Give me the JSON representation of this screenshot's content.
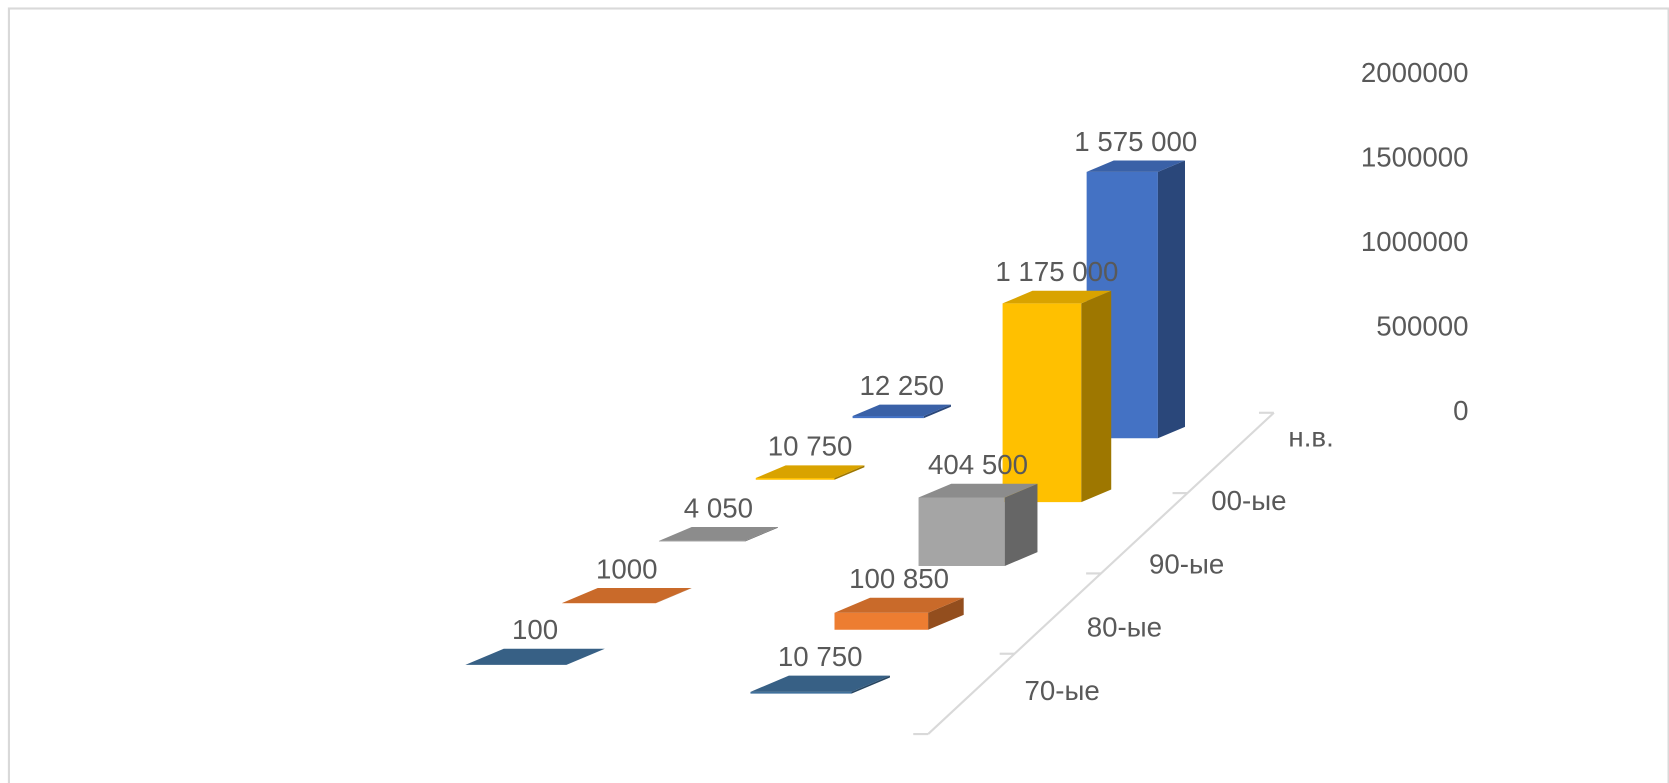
{
  "chart_data": {
    "type": "bar3d",
    "categories": [
      null,
      null
    ],
    "series": [
      {
        "name": "70-ые",
        "color": "#41719c",
        "values": [
          100,
          10750
        ],
        "value_labels": [
          "100",
          "10 750"
        ]
      },
      {
        "name": "80-ые",
        "color": "#ed7d31",
        "values": [
          1000,
          100850
        ],
        "value_labels": [
          "1000",
          "100 850"
        ]
      },
      {
        "name": "90-ые",
        "color": "#a5a5a5",
        "values": [
          4050,
          404500
        ],
        "value_labels": [
          "4 050",
          "404 500"
        ]
      },
      {
        "name": "00-ые",
        "color": "#ffc000",
        "values": [
          10750,
          1175000
        ],
        "value_labels": [
          "10 750",
          "1 175 000"
        ]
      },
      {
        "name": "н.в.",
        "color": "#4472c4",
        "values": [
          12250,
          1575000
        ],
        "value_labels": [
          "12 250",
          "1 575 000"
        ]
      }
    ],
    "ylim": [
      0,
      2000000
    ],
    "yticks": [
      0,
      500000,
      1000000,
      1500000,
      2000000
    ]
  }
}
